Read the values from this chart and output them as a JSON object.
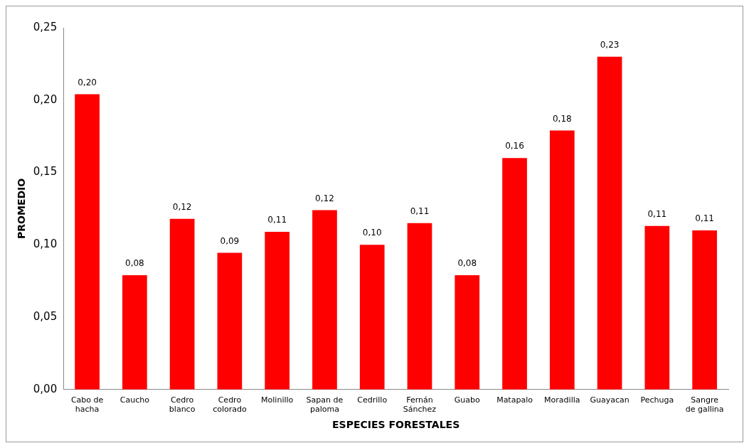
{
  "chart_data": {
    "type": "bar",
    "xlabel": "ESPECIES FORESTALES",
    "ylabel": "PROMEDIO",
    "categories": [
      "Cabo de hacha",
      "Caucho",
      "Cedro blanco",
      "Cedro colorado",
      "Molinillo",
      "Sapan de paloma",
      "Cedrillo",
      "Fernán Sánchez",
      "Guabo",
      "Matapalo",
      "Moradilla",
      "Guayacan",
      "Pechuga",
      "Sangre de gallina"
    ],
    "values": [
      0.204,
      0.079,
      0.118,
      0.0945,
      0.109,
      0.124,
      0.1,
      0.115,
      0.079,
      0.16,
      0.179,
      0.23,
      0.113,
      0.11
    ],
    "value_labels": [
      "0,20",
      "0,08",
      "0,12",
      "0,09",
      "0,11",
      "0,12",
      "0,10",
      "0,11",
      "0,08",
      "0,16",
      "0,18",
      "0,23",
      "0,11",
      "0,11"
    ],
    "color": "#ff0000",
    "ylim": [
      0,
      0.25
    ],
    "yticks": [
      {
        "value": 0,
        "label": "0,00"
      },
      {
        "value": 0.05,
        "label": "0,05"
      },
      {
        "value": 0.1,
        "label": "0,10"
      },
      {
        "value": 0.15,
        "label": "0,15"
      },
      {
        "value": 0.2,
        "label": "0,20"
      },
      {
        "value": 0.25,
        "label": "0,25"
      }
    ],
    "grid": false,
    "legend": false
  }
}
